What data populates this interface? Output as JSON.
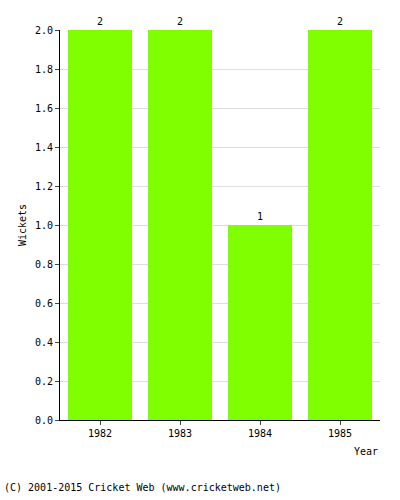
{
  "chart_data": {
    "type": "bar",
    "categories": [
      "1982",
      "1983",
      "1984",
      "1985"
    ],
    "values": [
      2,
      2,
      1,
      2
    ],
    "color": "#80ff00",
    "x_label": "Year",
    "y_label": "Wickets",
    "ylim": [
      0,
      2
    ],
    "yticks": [
      {
        "value": 0,
        "label": "0.0"
      },
      {
        "value": 0.2,
        "label": "0.2"
      },
      {
        "value": 0.4,
        "label": "0.4"
      },
      {
        "value": 0.6,
        "label": "0.6"
      },
      {
        "value": 0.8,
        "label": "0.8"
      },
      {
        "value": 1,
        "label": "1.0"
      },
      {
        "value": 1.2,
        "label": "1.2"
      },
      {
        "value": 1.4,
        "label": "1.4"
      },
      {
        "value": 1.6,
        "label": "1.6"
      },
      {
        "value": 1.8,
        "label": "1.8"
      },
      {
        "value": 2,
        "label": "2.0"
      }
    ],
    "grid": true,
    "data_labels": true,
    "annotations": [
      "(C) 2001-2015 Cricket Web (www.cricketweb.net)"
    ]
  }
}
